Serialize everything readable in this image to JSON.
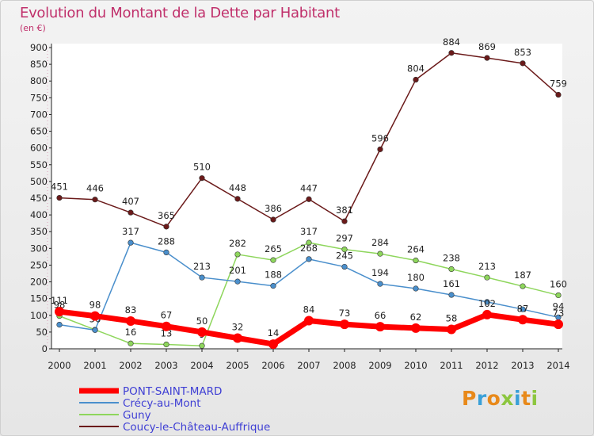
{
  "title": "Evolution du Montant de la Dette par Habitant",
  "unit": "(en €)",
  "logo": {
    "text": "Proxiti",
    "colors": [
      "#e8891a",
      "#3aa0d8",
      "#e8891a",
      "#8cc63f",
      "#3aa0d8",
      "#e8891a",
      "#8cc63f"
    ]
  },
  "chart_data": {
    "type": "line",
    "categories": [
      "2000",
      "2001",
      "2002",
      "2003",
      "2004",
      "2005",
      "2006",
      "2007",
      "2008",
      "2009",
      "2010",
      "2011",
      "2012",
      "2013",
      "2014"
    ],
    "ylim": [
      0,
      900
    ],
    "yticks": [
      0,
      50,
      100,
      150,
      200,
      250,
      300,
      350,
      400,
      450,
      500,
      550,
      600,
      650,
      700,
      750,
      800,
      850,
      900
    ],
    "grid": false,
    "legend_position": "bottom-left",
    "series": [
      {
        "name": "Coucy-le-Château-Auffrique",
        "color": "#6b1a1a",
        "values": [
          451,
          446,
          407,
          365,
          510,
          448,
          386,
          447,
          381,
          596,
          804,
          884,
          869,
          853,
          759
        ],
        "labels": [
          "451",
          "446",
          "407",
          "365",
          "510",
          "448",
          "386",
          "447",
          "381",
          "596",
          "804",
          "884",
          "869",
          "853",
          "759"
        ]
      },
      {
        "name": "Guny",
        "color": "#8ed65c",
        "values": [
          98,
          57,
          16,
          13,
          9,
          282,
          265,
          317,
          297,
          284,
          264,
          238,
          213,
          187,
          160
        ],
        "labels": [
          "98",
          "",
          "16",
          "13",
          "9",
          "282",
          "265",
          "317",
          "297",
          "284",
          "264",
          "238",
          "213",
          "187",
          "160"
        ]
      },
      {
        "name": "Crécy-au-Mont",
        "color": "#4a8fcc",
        "values": [
          72,
          56,
          317,
          288,
          213,
          201,
          188,
          268,
          245,
          194,
          180,
          161,
          140,
          118,
          94
        ],
        "labels": [
          "",
          "56",
          "317",
          "288",
          "213",
          "201",
          "188",
          "268",
          "245",
          "194",
          "180",
          "161",
          "",
          "",
          "94"
        ]
      },
      {
        "name": "PONT-SAINT-MARD",
        "color": "#ff0000",
        "values": [
          111,
          98,
          83,
          67,
          50,
          32,
          14,
          84,
          73,
          66,
          62,
          58,
          102,
          87,
          73
        ],
        "labels": [
          "111",
          "98",
          "83",
          "67",
          "50",
          "32",
          "14",
          "84",
          "73",
          "66",
          "62",
          "58",
          "102",
          "87",
          "73"
        ]
      }
    ]
  }
}
